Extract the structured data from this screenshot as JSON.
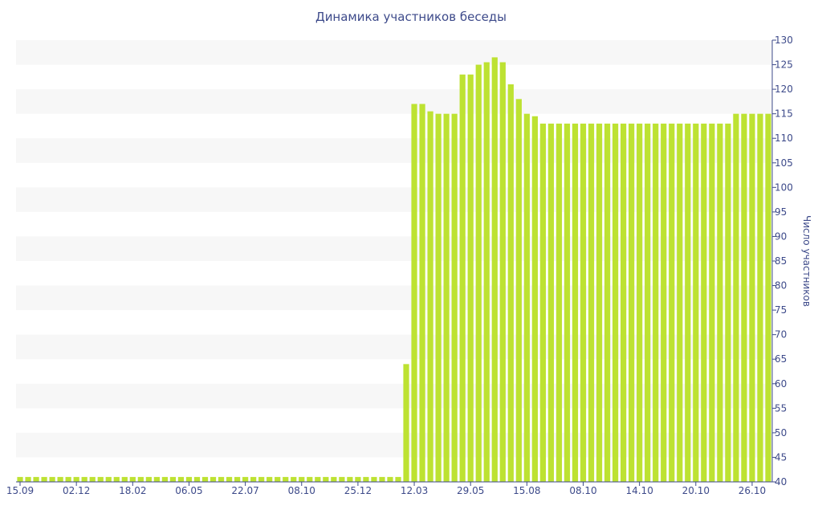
{
  "chart_data": {
    "type": "bar",
    "title": "Динамика участников беседы",
    "ylabel": "Число участников",
    "xlabel": "",
    "ylim": [
      40,
      130
    ],
    "y_ticks": [
      40,
      45,
      50,
      55,
      60,
      65,
      70,
      75,
      80,
      85,
      90,
      95,
      100,
      105,
      110,
      115,
      120,
      125,
      130
    ],
    "x_tick_labels": [
      "15.09",
      "02.12",
      "18.02",
      "06.05",
      "22.07",
      "08.10",
      "25.12",
      "12.03",
      "29.05",
      "15.08",
      "08.10",
      "14.10",
      "20.10",
      "26.10"
    ],
    "x_tick_bar_index": [
      0,
      7,
      14,
      21,
      28,
      35,
      42,
      49,
      56,
      63,
      70,
      77,
      84,
      91
    ],
    "grid": true,
    "bar_color": "#bde232",
    "band_color": "#f7f7f7",
    "axis_color": "#3d4a8a",
    "values": [
      41,
      41,
      41,
      41,
      41,
      41,
      41,
      41,
      41,
      41,
      41,
      41,
      41,
      41,
      41,
      41,
      41,
      41,
      41,
      41,
      41,
      41,
      41,
      41,
      41,
      41,
      41,
      41,
      41,
      41,
      41,
      41,
      41,
      41,
      41,
      41,
      41,
      41,
      41,
      41,
      41,
      41,
      41,
      41,
      41,
      41,
      41,
      41,
      64,
      117,
      117,
      115.5,
      115,
      115,
      115,
      123,
      123,
      125,
      125.5,
      126.5,
      125.5,
      121,
      118,
      115,
      114.5,
      113,
      113,
      113,
      113,
      113,
      113,
      113,
      113,
      113,
      113,
      113,
      113,
      113,
      113,
      113,
      113,
      113,
      113,
      113,
      113,
      113,
      113,
      113,
      113,
      115,
      115,
      115,
      115,
      115
    ]
  }
}
